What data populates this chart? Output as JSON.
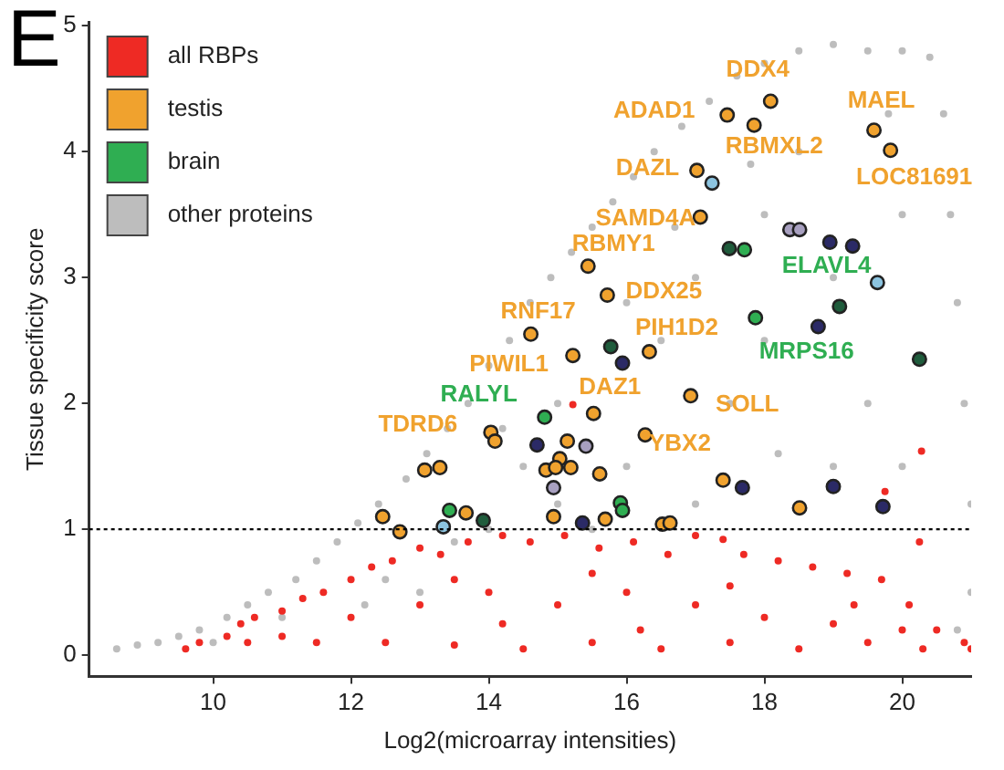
{
  "chart_data": {
    "type": "scatter",
    "title": "E",
    "xlabel": "Log2(microarray intensities)",
    "ylabel": "Tissue specificity score",
    "xlim": [
      8.2,
      21
    ],
    "xticks": [
      10,
      12,
      14,
      16,
      18,
      20
    ],
    "ylim": [
      -0.17,
      5.03
    ],
    "yticks": [
      0,
      1,
      2,
      3,
      4,
      5
    ],
    "grid": false,
    "legend": "top left",
    "marker": "circle",
    "ref_lines": [
      {
        "axis": "y",
        "value": 1,
        "color": "#000000",
        "line_style": "dotted"
      }
    ],
    "series": [
      {
        "name": "all RBPs",
        "color": "#ee2a24",
        "x": [
          9.6,
          9.8,
          10.2,
          10.4,
          10.6,
          11,
          11.3,
          11.6,
          12,
          12.3,
          12.6,
          13,
          13.3,
          13.7,
          14.2,
          14.6,
          15.1,
          15.6,
          16.1,
          16.6,
          17,
          17.4,
          17.7,
          18.2,
          18.7,
          19.2,
          19.7,
          20.1,
          20.5,
          20.9,
          21,
          20.3,
          19.5,
          18.5,
          17.5,
          16.5,
          15.5,
          14.5,
          13.5,
          12.5,
          11.5,
          10.5,
          12,
          13,
          14,
          15,
          16,
          17,
          18,
          19,
          20,
          13.5,
          15.5,
          17.5,
          19.3,
          20.28,
          19.75,
          15.22,
          20.25,
          16.2,
          14.2,
          11
        ],
        "values": [
          0.05,
          0.1,
          0.15,
          0.25,
          0.3,
          0.35,
          0.45,
          0.5,
          0.6,
          0.7,
          0.75,
          0.85,
          0.8,
          0.9,
          0.95,
          0.9,
          0.95,
          0.85,
          0.9,
          0.8,
          0.95,
          0.92,
          0.8,
          0.75,
          0.7,
          0.65,
          0.6,
          0.4,
          0.2,
          0.1,
          0.05,
          0.05,
          0.1,
          0.05,
          0.1,
          0.05,
          0.1,
          0.05,
          0.08,
          0.1,
          0.1,
          0.1,
          0.3,
          0.4,
          0.5,
          0.4,
          0.5,
          0.4,
          0.3,
          0.25,
          0.2,
          0.6,
          0.65,
          0.55,
          0.4,
          1.62,
          1.3,
          1.99,
          0.9,
          0.2,
          0.25,
          0.15
        ]
      },
      {
        "name": "testis",
        "color": "#f0a22e",
        "x": [
          18.09,
          17.46,
          17.85,
          19.59,
          19.83,
          17.02,
          17.07,
          15.44,
          15.72,
          14.61,
          16.33,
          15.22,
          16.93,
          15.52,
          16.27,
          14.03,
          14.09,
          15.14,
          15.03,
          15.19,
          14.83,
          14.97,
          15.61,
          17.4,
          18.51,
          14.94,
          15.69,
          16.52,
          16.63,
          13.07,
          13.29,
          12.46,
          12.71,
          13.67
        ],
        "values": [
          4.4,
          4.29,
          4.21,
          4.17,
          4.01,
          3.85,
          3.48,
          3.09,
          2.86,
          2.55,
          2.41,
          2.38,
          2.06,
          1.92,
          1.75,
          1.77,
          1.7,
          1.7,
          1.56,
          1.49,
          1.47,
          1.49,
          1.44,
          1.39,
          1.17,
          1.1,
          1.08,
          1.04,
          1.05,
          1.47,
          1.49,
          1.1,
          0.98,
          1.13
        ]
      },
      {
        "name": "brain",
        "color": "#2fae52",
        "x": [
          17.71,
          17.87,
          14.81,
          15.91,
          15.94,
          13.43
        ],
        "values": [
          3.22,
          2.68,
          1.89,
          1.21,
          1.15,
          1.15
        ]
      },
      {
        "name": "other proteins",
        "color": "#bdbdbd",
        "x": [
          8.6,
          8.9,
          9.2,
          9.5,
          9.8,
          10.2,
          10.5,
          10.8,
          11.2,
          11.5,
          11.8,
          12.1,
          12.4,
          12.8,
          13.1,
          13.4,
          13.7,
          14,
          14.3,
          14.6,
          14.9,
          15.2,
          15.5,
          15.8,
          16.1,
          16.4,
          16.8,
          17.2,
          17.6,
          18,
          18.5,
          19,
          19.5,
          20,
          20.4,
          20.6,
          20.7,
          20.8,
          20.9,
          21,
          21,
          20.8,
          13,
          14,
          14.5,
          15,
          15.5,
          16,
          16.5,
          17,
          17.5,
          18,
          18.5,
          19,
          19.5,
          20,
          20,
          19,
          18,
          17,
          16,
          15,
          13.5,
          12.5,
          11,
          18.2,
          19.8,
          17.8,
          16.7,
          14.2,
          12.2,
          10
        ],
        "values": [
          0.05,
          0.08,
          0.1,
          0.15,
          0.2,
          0.3,
          0.4,
          0.5,
          0.6,
          0.75,
          0.9,
          1.05,
          1.2,
          1.4,
          1.6,
          1.8,
          2,
          2.3,
          2.5,
          2.8,
          3,
          3.2,
          3.4,
          3.6,
          3.8,
          4,
          4.2,
          4.4,
          4.6,
          4.7,
          4.8,
          4.85,
          4.8,
          4.8,
          4.75,
          4.3,
          3.5,
          2.8,
          2,
          1.2,
          0.5,
          0.2,
          0.5,
          1,
          1.5,
          2,
          1,
          1.5,
          2.5,
          3,
          2,
          3.5,
          4,
          3,
          2,
          3.5,
          1.5,
          1.5,
          2.5,
          1.2,
          2.8,
          1.2,
          0.9,
          0.6,
          0.3,
          1.6,
          4.3,
          3.9,
          3.4,
          1.8,
          0.4,
          0.1
        ]
      },
      {
        "color": "#1f5c3c",
        "x": [
          17.49,
          19.09,
          15.77,
          20.25,
          13.92
        ],
        "values": [
          3.23,
          2.77,
          2.45,
          2.35,
          1.07
        ]
      },
      {
        "color": "#2b2a66",
        "x": [
          18.95,
          19.28,
          18.78,
          15.94,
          14.7,
          17.68,
          19,
          19.72,
          15.36
        ],
        "values": [
          3.28,
          3.25,
          2.61,
          2.32,
          1.67,
          1.33,
          1.34,
          1.18,
          1.05
        ]
      },
      {
        "color": "#8cc4e0",
        "x": [
          17.24,
          19.64,
          13.34
        ],
        "values": [
          3.75,
          2.96,
          1.02
        ]
      },
      {
        "color": "#a8a0c0",
        "x": [
          18.37,
          18.51,
          15.41,
          14.94
        ],
        "values": [
          3.38,
          3.38,
          1.66,
          1.33
        ]
      }
    ],
    "annotations": [
      {
        "text": "DDX4",
        "x": 18.09,
        "y": 4.4
      },
      {
        "text": "ADAD1",
        "x": 17.46,
        "y": 4.29
      },
      {
        "text": "MAEL",
        "x": 19.59,
        "y": 4.17
      },
      {
        "text": "RBMXL2",
        "x": 17.85,
        "y": 4.21
      },
      {
        "text": "DAZL",
        "x": 17.02,
        "y": 3.85
      },
      {
        "text": "LOC81691",
        "x": 19.83,
        "y": 4.01
      },
      {
        "text": "SAMD4A",
        "x": 17.07,
        "y": 3.48
      },
      {
        "text": "RBMY1",
        "x": 15.44,
        "y": 3.09
      },
      {
        "text": "ELAVL4",
        "x": 17.71,
        "y": 3.22
      },
      {
        "text": "DDX25",
        "x": 15.72,
        "y": 2.86
      },
      {
        "text": "RNF17",
        "x": 14.61,
        "y": 2.55
      },
      {
        "text": "PIH1D2",
        "x": 16.33,
        "y": 2.41
      },
      {
        "text": "MRPS16",
        "x": 17.87,
        "y": 2.68
      },
      {
        "text": "PIWIL1",
        "x": 15.22,
        "y": 2.38
      },
      {
        "text": "DAZ1",
        "x": 15.52,
        "y": 1.92
      },
      {
        "text": "SOLL",
        "x": 16.93,
        "y": 2.06
      },
      {
        "text": "RALYL",
        "x": 14.81,
        "y": 1.89
      },
      {
        "text": "TDRD6",
        "x": 14.03,
        "y": 1.77
      },
      {
        "text": "YBX2",
        "x": 16.27,
        "y": 1.75
      }
    ]
  }
}
